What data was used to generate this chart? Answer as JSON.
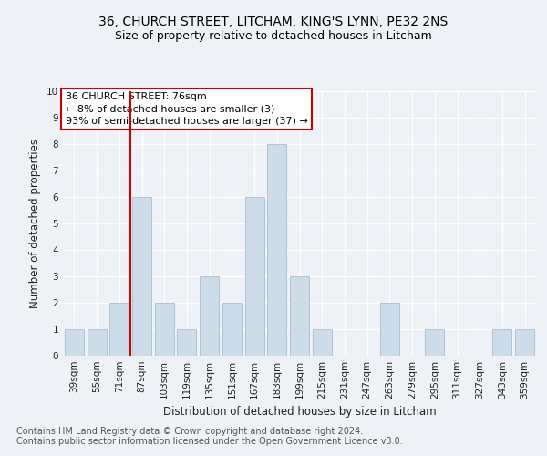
{
  "title1": "36, CHURCH STREET, LITCHAM, KING'S LYNN, PE32 2NS",
  "title2": "Size of property relative to detached houses in Litcham",
  "xlabel": "Distribution of detached houses by size in Litcham",
  "ylabel": "Number of detached properties",
  "categories": [
    "39sqm",
    "55sqm",
    "71sqm",
    "87sqm",
    "103sqm",
    "119sqm",
    "135sqm",
    "151sqm",
    "167sqm",
    "183sqm",
    "199sqm",
    "215sqm",
    "231sqm",
    "247sqm",
    "263sqm",
    "279sqm",
    "295sqm",
    "311sqm",
    "327sqm",
    "343sqm",
    "359sqm"
  ],
  "values": [
    1,
    1,
    2,
    6,
    2,
    1,
    3,
    2,
    6,
    8,
    3,
    1,
    0,
    0,
    2,
    0,
    1,
    0,
    0,
    1,
    1
  ],
  "bar_color": "#ccdce8",
  "bar_edge_color": "#aabccc",
  "vline_x": 2.5,
  "vline_color": "#cc0000",
  "annotation_text": "36 CHURCH STREET: 76sqm\n← 8% of detached houses are smaller (3)\n93% of semi-detached houses are larger (37) →",
  "annotation_box_color": "#ffffff",
  "annotation_box_edge": "#cc0000",
  "ylim": [
    0,
    10
  ],
  "yticks": [
    0,
    1,
    2,
    3,
    4,
    5,
    6,
    7,
    8,
    9,
    10
  ],
  "footer1": "Contains HM Land Registry data © Crown copyright and database right 2024.",
  "footer2": "Contains public sector information licensed under the Open Government Licence v3.0.",
  "bg_color": "#eef2f7",
  "grid_color": "#ffffff",
  "title1_fontsize": 10,
  "title2_fontsize": 9,
  "axis_label_fontsize": 8.5,
  "tick_fontsize": 7.5,
  "footer_fontsize": 7,
  "annot_fontsize": 8
}
